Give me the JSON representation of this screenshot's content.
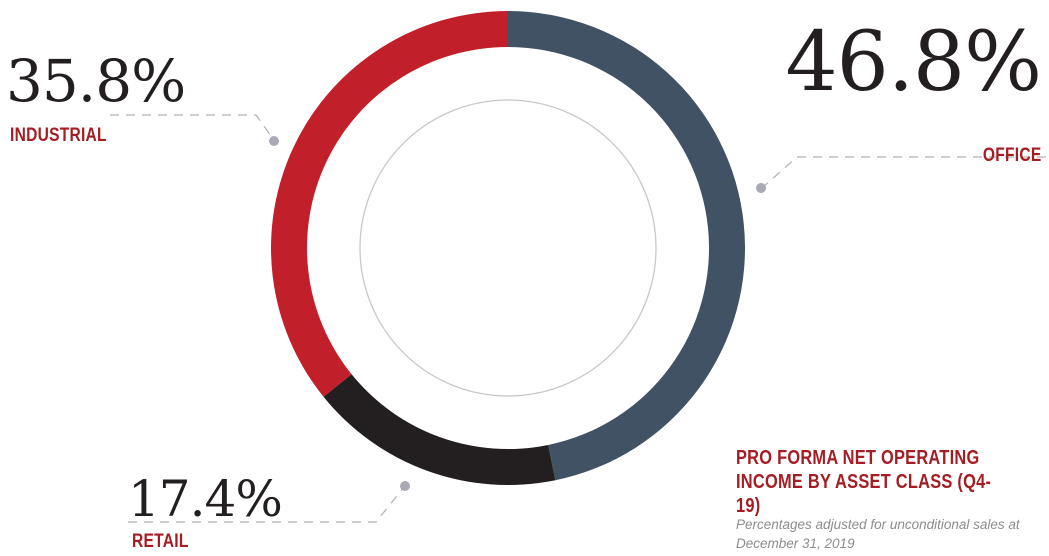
{
  "chart_data": {
    "type": "pie",
    "style": "donut",
    "title": "PRO FORMA NET OPERATING INCOME BY ASSET CLASS (Q4-19)",
    "subtitle": "Percentages adjusted for unconditional sales at December 31, 2019",
    "slices": [
      {
        "label": "OFFICE",
        "value": 46.8,
        "display": "46.8%",
        "color": "#415264"
      },
      {
        "label": "RETAIL",
        "value": 17.4,
        "display": "17.4%",
        "color": "#231f20"
      },
      {
        "label": "INDUSTRIAL",
        "value": 35.8,
        "display": "35.8%",
        "color": "#c1202a"
      }
    ],
    "start_angle": "12 o'clock",
    "direction": "clockwise"
  },
  "colors": {
    "label_accent": "#a51c23",
    "value_text": "#231f20",
    "leader_line": "#b0b0b0",
    "leader_dot": "#a8a9b4",
    "inner_ring": "#c8c8c8",
    "note_text": "#8d8d8d"
  }
}
